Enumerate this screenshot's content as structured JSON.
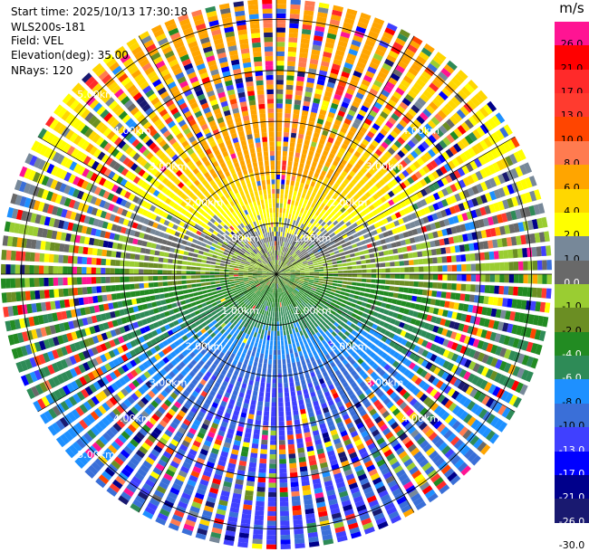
{
  "header": {
    "start_time": "Start time: 2025/10/13 17:30:18",
    "station": "WLS200s-181",
    "field": "Field: VEL",
    "elevation": "Elevation(deg): 35.00",
    "nrays": "NRays: 120"
  },
  "chart_data": {
    "type": "ppi-heatmap",
    "field": "VEL",
    "units": "m/s",
    "nrays": 120,
    "elevation_deg": 35.0,
    "range_rings_km": [
      1.0,
      2.0,
      3.0,
      4.0,
      5.0
    ],
    "ring_labels": [
      "1.00km",
      "2.00km",
      "3.00km",
      "4.00km",
      "5.00km"
    ],
    "max_range_km": 5.4,
    "colorbar": {
      "title": "m/s",
      "bins": [
        {
          "label": "26.0",
          "color": "#ff1493"
        },
        {
          "label": "21.0",
          "color": "#ff0000"
        },
        {
          "label": "17.0",
          "color": "#ff2a2a"
        },
        {
          "label": "13.0",
          "color": "#ff3b2f"
        },
        {
          "label": "10.0",
          "color": "#ff4500"
        },
        {
          "label": "8.0",
          "color": "#ff7b50"
        },
        {
          "label": "6.0",
          "color": "#ffa500"
        },
        {
          "label": "4.0",
          "color": "#ffd700"
        },
        {
          "label": "2.0",
          "color": "#ffff00"
        },
        {
          "label": "1.0",
          "color": "#778899"
        },
        {
          "label": "0.0",
          "color": "#696969"
        },
        {
          "label": "-1.0",
          "color": "#9acd32"
        },
        {
          "label": "-2.0",
          "color": "#6b8e23"
        },
        {
          "label": "-4.0",
          "color": "#228b22"
        },
        {
          "label": "-6.0",
          "color": "#2e8b57"
        },
        {
          "label": "-8.0",
          "color": "#1e90ff"
        },
        {
          "label": "-10.0",
          "color": "#3a6fd8"
        },
        {
          "label": "-13.0",
          "color": "#4040ff"
        },
        {
          "label": "-17.0",
          "color": "#0000ff"
        },
        {
          "label": "-21.0",
          "color": "#00008b"
        },
        {
          "label": "-26.0",
          "color": "#191970"
        },
        {
          "label": "-30.0",
          "color": "#ffffff"
        }
      ]
    }
  }
}
